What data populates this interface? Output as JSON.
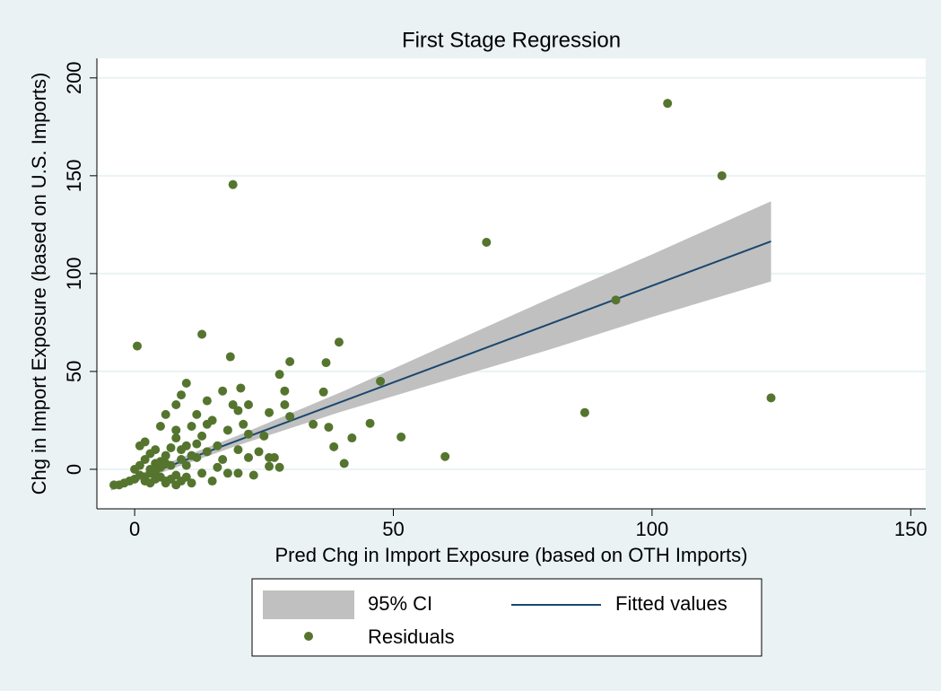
{
  "chart_data": {
    "type": "scatter",
    "title": "First Stage Regression",
    "x_label": "Pred Chg in Import Exposure (based on OTH Imports)",
    "y_label": "Chg in Import Exposure (based on U.S. Imports)",
    "xlim": [
      -7.3,
      152.9
    ],
    "ylim": [
      -20.2,
      210
    ],
    "xticks": [
      0,
      50,
      100,
      150
    ],
    "yticks": [
      0,
      50,
      100,
      150,
      200
    ],
    "grid": true,
    "series": [
      {
        "name": "95% CI",
        "type": "area",
        "color": "#c0c0c0",
        "x": [
          -4.6,
          20,
          40,
          60,
          80,
          100,
          123
        ],
        "lower": [
          -11,
          12.3,
          29.5,
          45.3,
          61,
          77.8,
          96
        ],
        "upper": [
          -8,
          17.3,
          39.5,
          63.3,
          87,
          109.8,
          137
        ]
      },
      {
        "name": "Fitted values",
        "type": "line",
        "color": "#1a476f",
        "x": [
          -4.6,
          123
        ],
        "values": [
          -9.5,
          116.5
        ]
      },
      {
        "name": "Residuals",
        "type": "scatter",
        "color": "#55752f",
        "x": [
          -4,
          -3,
          -2,
          -1,
          0,
          0,
          1,
          1,
          1,
          2,
          2,
          2,
          3,
          3,
          3,
          4,
          4,
          4,
          5,
          5,
          5,
          6,
          6,
          6,
          7,
          7,
          7,
          8,
          8,
          8,
          9,
          9,
          9,
          10,
          10,
          10,
          11,
          11,
          12,
          12,
          13,
          13,
          14,
          14,
          15,
          15,
          16,
          16,
          17,
          17,
          18,
          18,
          19,
          20,
          20,
          21,
          22,
          22,
          23,
          24,
          25,
          26,
          27,
          28,
          29,
          30,
          2,
          4,
          6,
          8,
          10,
          12,
          14,
          6,
          8,
          3,
          5,
          9,
          11,
          20,
          103,
          113.5,
          19,
          68,
          93,
          123,
          87,
          60,
          51.5,
          47.5,
          40.5,
          42,
          39.5,
          37,
          36.5,
          38.5,
          34.5,
          0.5,
          13,
          18.5,
          28,
          45.5,
          37.5,
          30,
          26,
          26,
          29,
          20.5,
          22
        ],
        "values": [
          -8,
          -8,
          -7,
          -6,
          -5,
          0,
          -3,
          2,
          12,
          -6,
          5,
          14,
          -2,
          8,
          -7,
          3,
          10,
          -5,
          1,
          -4,
          22,
          -6,
          7,
          28,
          2,
          -5,
          11,
          -3,
          16,
          33,
          5,
          -6,
          38,
          2,
          12,
          -4,
          22,
          -7,
          28,
          6,
          17,
          -2,
          35,
          9,
          25,
          -6,
          12,
          1,
          40,
          5,
          -2,
          20,
          33,
          10,
          -2,
          23,
          6,
          18,
          -3,
          9,
          17,
          29,
          6,
          1,
          33,
          55,
          -4,
          -1,
          3,
          20,
          44,
          13,
          23,
          -7,
          -8,
          0,
          4,
          10,
          7,
          30,
          187,
          150,
          145.5,
          116,
          86.5,
          36.5,
          29,
          6.5,
          16.5,
          45,
          3,
          16,
          65,
          54.5,
          39.5,
          11.5,
          23,
          63,
          69,
          57.5,
          48.5,
          23.5,
          21.5,
          27,
          6,
          1.5,
          40,
          41.5,
          33
        ]
      }
    ]
  }
}
